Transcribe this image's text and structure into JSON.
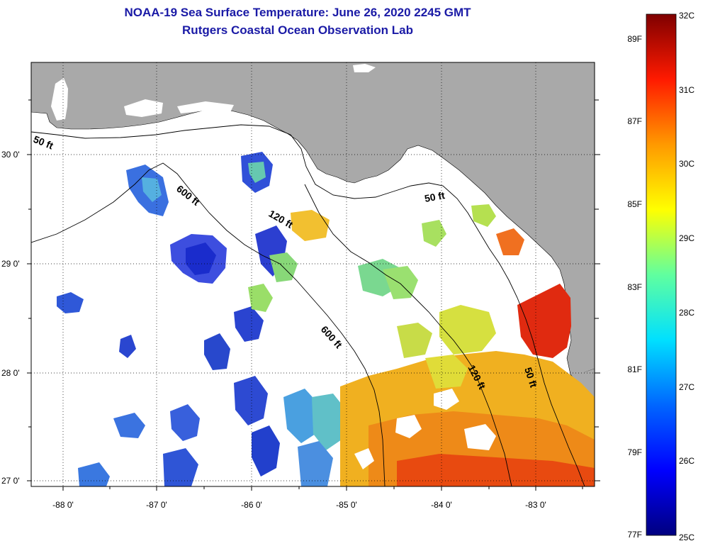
{
  "title": {
    "line1": "NOAA-19 Sea Surface Temperature:  June 26, 2020 2245 GMT",
    "line2": "Rutgers Coastal Ocean Observation Lab"
  },
  "colors": {
    "title": "#1a1aa6",
    "land": "#a9a9a9",
    "cloud": "#ffffff",
    "contour": "#000000"
  },
  "axes": {
    "x_ticks": [
      "-88 0'",
      "-87 0'",
      "-86 0'",
      "-85 0'",
      "-84 0'",
      "-83 0'"
    ],
    "y_ticks": [
      "30 0'",
      "29 0'",
      "28 0'",
      "27 0'"
    ]
  },
  "contours": {
    "labels": [
      "50 ft",
      "600 ft",
      "120 ft",
      "50 ft",
      "600 ft",
      "120 ft",
      "50 ft"
    ]
  },
  "colorbar": {
    "celsius": [
      "32C",
      "31C",
      "30C",
      "29C",
      "28C",
      "27C",
      "26C",
      "25C"
    ],
    "fahrenheit": [
      "89F",
      "87F",
      "85F",
      "83F",
      "81F",
      "79F",
      "77F"
    ]
  }
}
